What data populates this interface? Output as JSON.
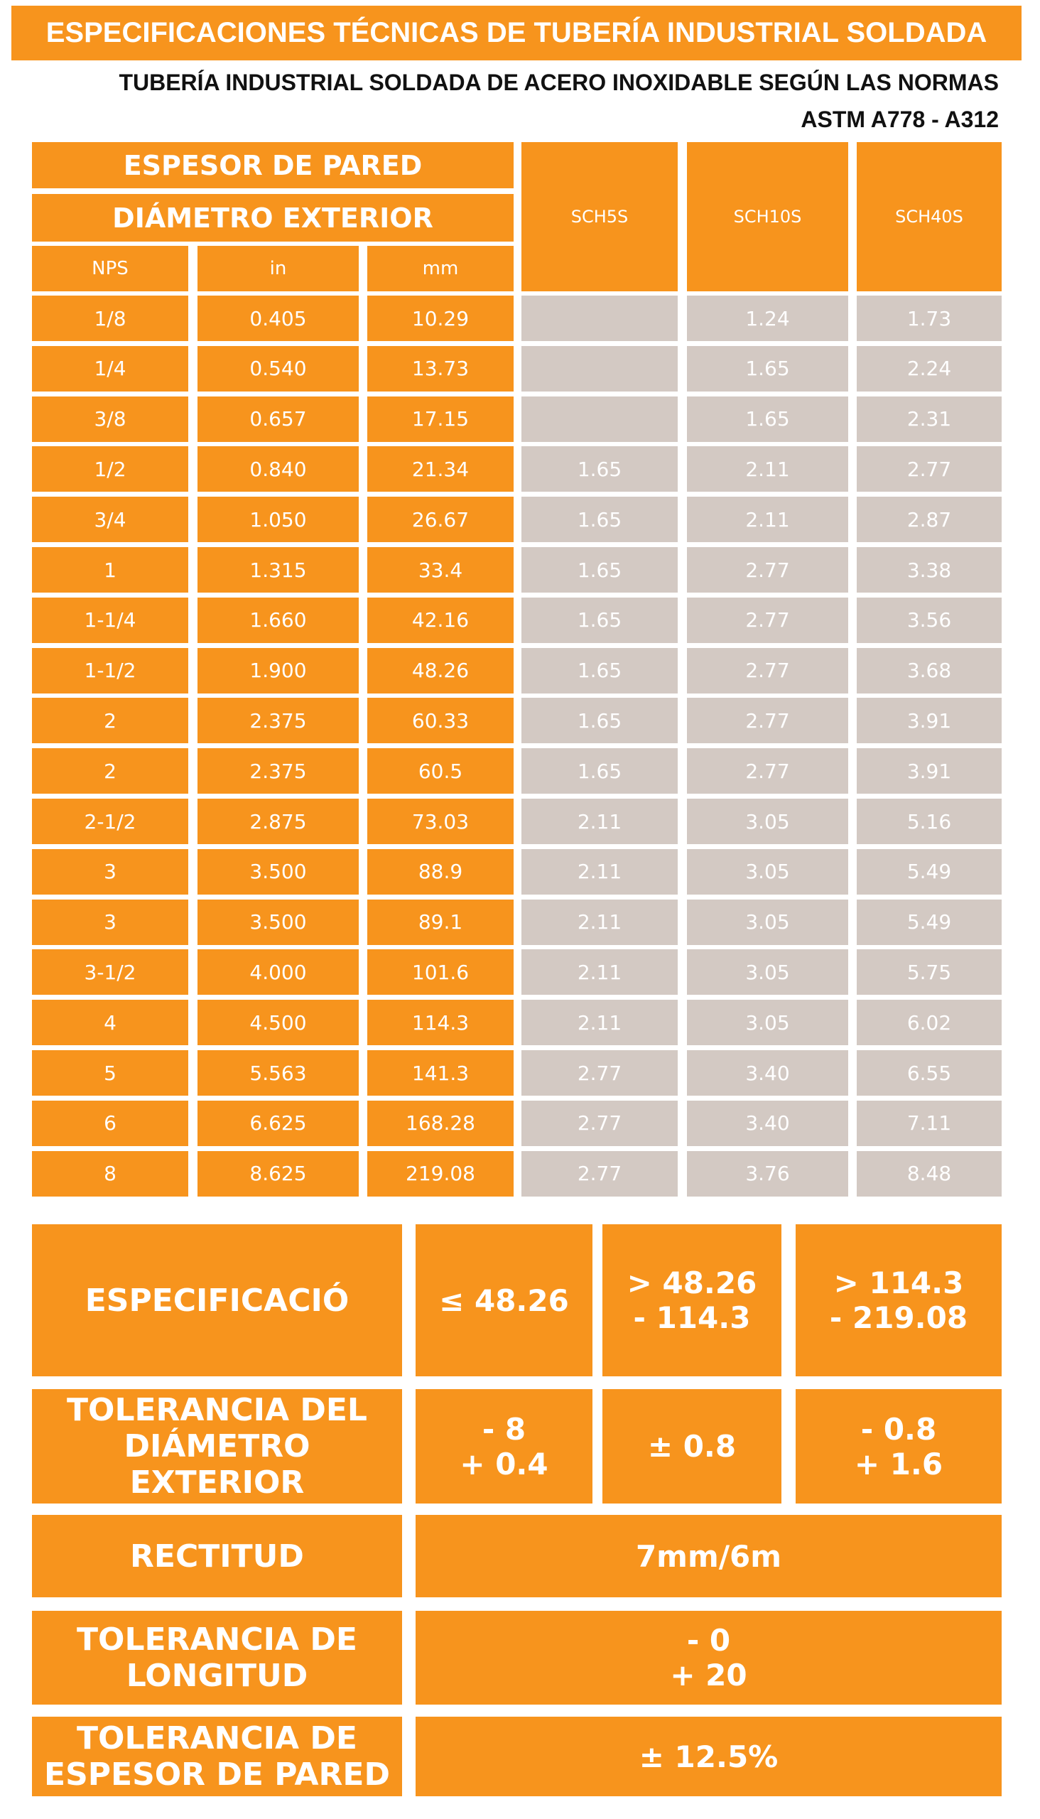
{
  "header": {
    "title": "ESPECIFICACIONES TÉCNICAS DE TUBERÍA INDUSTRIAL SOLDADA",
    "subtitle": [
      "TUBERÍA INDUSTRIAL SOLDADA DE ACERO INOXIDABLE SEGÚN LAS NORMAS",
      "ASTM A778 - A312"
    ]
  },
  "table": {
    "group_headers": [
      "ESPESOR DE PARED",
      "DIÁMETRO EXTERIOR"
    ],
    "columns": [
      "NPS",
      "in",
      "mm",
      "SCH5S",
      "SCH10S",
      "SCH40S"
    ],
    "rows": [
      [
        "1/8",
        "0.405",
        "10.29",
        null,
        "1.24",
        "1.73"
      ],
      [
        "1/4",
        "0.540",
        "13.73",
        null,
        "1.65",
        "2.24"
      ],
      [
        "3/8",
        "0.657",
        "17.15",
        null,
        "1.65",
        "2.31"
      ],
      [
        "1/2",
        "0.840",
        "21.34",
        "1.65",
        "2.11",
        "2.77"
      ],
      [
        "3/4",
        "1.050",
        "26.67",
        "1.65",
        "2.11",
        "2.87"
      ],
      [
        "1",
        "1.315",
        "33.4",
        "1.65",
        "2.77",
        "3.38"
      ],
      [
        "1-1/4",
        "1.660",
        "42.16",
        "1.65",
        "2.77",
        "3.56"
      ],
      [
        "1-1/2",
        "1.900",
        "48.26",
        "1.65",
        "2.77",
        "3.68"
      ],
      [
        "2",
        "2.375",
        "60.33",
        "1.65",
        "2.77",
        "3.91"
      ],
      [
        "2",
        "2.375",
        "60.5",
        "1.65",
        "2.77",
        "3.91"
      ],
      [
        "2-1/2",
        "2.875",
        "73.03",
        "2.11",
        "3.05",
        "5.16"
      ],
      [
        "3",
        "3.500",
        "88.9",
        "2.11",
        "3.05",
        "5.49"
      ],
      [
        "3",
        "3.500",
        "89.1",
        "2.11",
        "3.05",
        "5.49"
      ],
      [
        "3-1/2",
        "4.000",
        "101.6",
        "2.11",
        "3.05",
        "5.75"
      ],
      [
        "4",
        "4.500",
        "114.3",
        "2.11",
        "3.05",
        "6.02"
      ],
      [
        "5",
        "5.563",
        "141.3",
        "2.77",
        "3.40",
        "6.55"
      ],
      [
        "6",
        "6.625",
        "168.28",
        "2.77",
        "3.40",
        "7.11"
      ],
      [
        "8",
        "8.625",
        "219.08",
        "2.77",
        "3.76",
        "8.48"
      ]
    ]
  },
  "spec": {
    "rows": [
      [
        "ESPECIFICACIÓ",
        "≤ 48.26",
        "> 48.26\n- 114.3",
        "> 114.3\n- 219.08"
      ],
      [
        "TOLERANCIA DEL\nDIÁMETRO EXTERIOR",
        "- 8\n+ 0.4",
        "± 0.8",
        "- 0.8\n+ 1.6"
      ],
      [
        "RECTITUD",
        "7mm/6m"
      ],
      [
        "TOLERANCIA DE\nLONGITUD",
        "- 0\n+ 20"
      ],
      [
        "TOLERANCIA DE\nESPESOR DE PARED",
        "± 12.5%"
      ]
    ]
  }
}
